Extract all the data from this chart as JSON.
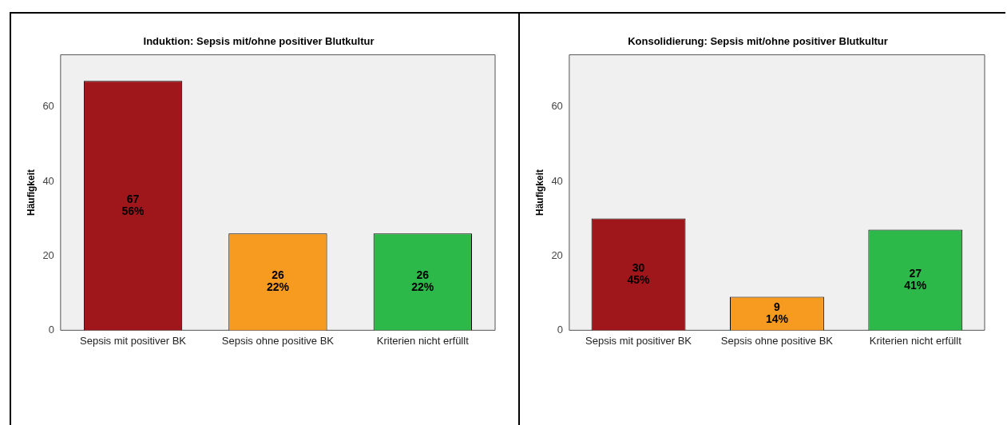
{
  "chart_data": [
    {
      "type": "bar",
      "title": "Induktion: Sepsis mit/ohne positiver Blutkultur",
      "ylabel": "Häufigkeit",
      "categories": [
        "Sepsis mit positiver BK",
        "Sepsis ohne positive BK",
        "Kriterien nicht erfüllt"
      ],
      "values": [
        67,
        26,
        26
      ],
      "colors": [
        "#a0171b",
        "#f79b20",
        "#2db84a"
      ],
      "value_labels": [
        "67\n56%",
        "26\n22%",
        "26\n22%"
      ],
      "ylim": [
        0,
        74
      ],
      "yticks": [
        0,
        20,
        40,
        60
      ],
      "grid": false,
      "legend": false
    },
    {
      "type": "bar",
      "title": "Konsolidierung: Sepsis mit/ohne positiver Blutkultur",
      "ylabel": "Häufigkeit",
      "categories": [
        "Sepsis mit positiver BK",
        "Sepsis ohne positive BK",
        "Kriterien nicht erfüllt"
      ],
      "values": [
        30,
        9,
        27
      ],
      "colors": [
        "#a0171b",
        "#f79b20",
        "#2db84a"
      ],
      "value_labels": [
        "30\n45%",
        "9\n14%",
        "27\n41%"
      ],
      "ylim": [
        0,
        74
      ],
      "yticks": [
        0,
        20,
        40,
        60
      ],
      "grid": false,
      "legend": false
    }
  ]
}
